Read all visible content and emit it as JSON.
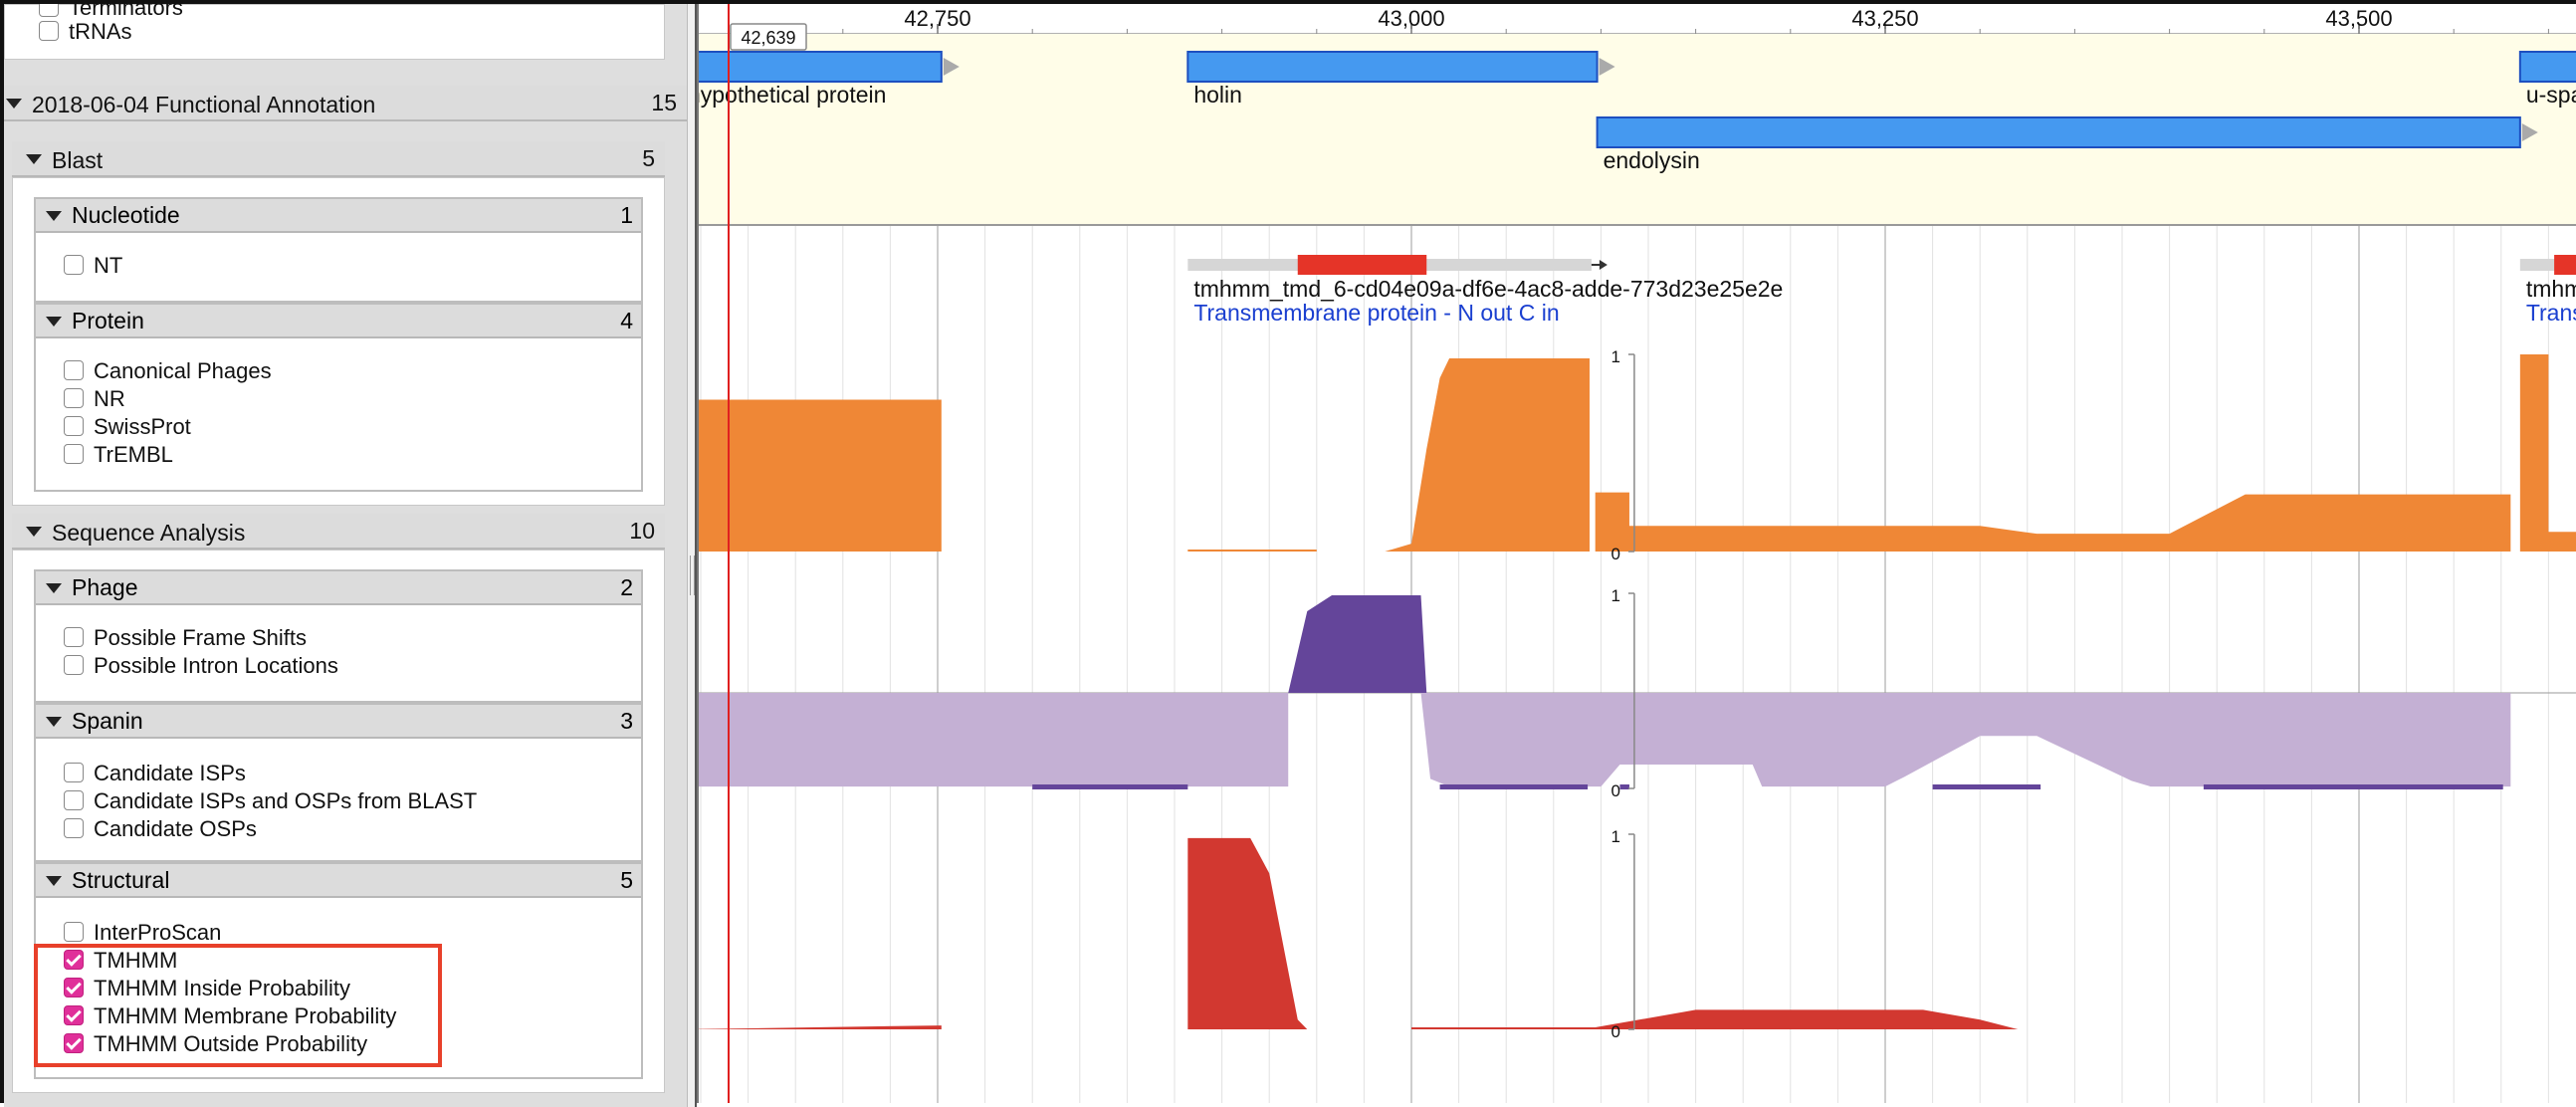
{
  "sidebar": {
    "top_items": [
      {
        "label": "Terminators",
        "checked": false
      },
      {
        "label": "tRNAs",
        "checked": false
      }
    ],
    "section": {
      "title": "2018-06-04 Functional Annotation",
      "count": "15"
    },
    "groups": [
      {
        "title": "Blast",
        "count": "5",
        "subgroups": [
          {
            "title": "Nucleotide",
            "count": "1",
            "items": [
              {
                "label": "NT",
                "checked": false
              }
            ]
          },
          {
            "title": "Protein",
            "count": "4",
            "items": [
              {
                "label": "Canonical Phages",
                "checked": false
              },
              {
                "label": "NR",
                "checked": false
              },
              {
                "label": "SwissProt",
                "checked": false
              },
              {
                "label": "TrEMBL",
                "checked": false
              }
            ]
          }
        ]
      },
      {
        "title": "Sequence Analysis",
        "count": "10",
        "subgroups": [
          {
            "title": "Phage",
            "count": "2",
            "items": [
              {
                "label": "Possible Frame Shifts",
                "checked": false
              },
              {
                "label": "Possible Intron Locations",
                "checked": false
              }
            ]
          },
          {
            "title": "Spanin",
            "count": "3",
            "items": [
              {
                "label": "Candidate ISPs",
                "checked": false
              },
              {
                "label": "Candidate ISPs and OSPs from BLAST",
                "checked": false
              },
              {
                "label": "Candidate OSPs",
                "checked": false
              }
            ]
          },
          {
            "title": "Structural",
            "count": "5",
            "items": [
              {
                "label": "InterProScan",
                "checked": false
              },
              {
                "label": "TMHMM",
                "checked": true
              },
              {
                "label": "TMHMM Inside Probability",
                "checked": true
              },
              {
                "label": "TMHMM Membrane Probability",
                "checked": true
              },
              {
                "label": "TMHMM Outside Probability",
                "checked": true
              }
            ]
          }
        ]
      }
    ]
  },
  "browser": {
    "ruler": {
      "position_label": "42,639",
      "ticks": [
        {
          "pos": 42750,
          "label": "42,750"
        },
        {
          "pos": 43000,
          "label": "43,000"
        },
        {
          "pos": 43250,
          "label": "43,250"
        },
        {
          "pos": 43500,
          "label": "43,500"
        }
      ]
    },
    "genes": [
      {
        "name": "hypothetical protein",
        "start": 42615,
        "end": 42752,
        "row": 0
      },
      {
        "name": "holin",
        "start": 42882,
        "end": 43098,
        "row": 0
      },
      {
        "name": "endolysin",
        "start": 43098,
        "end": 43585,
        "row": 1
      },
      {
        "name": "u-spanin",
        "start": 43585,
        "end": 43700,
        "row": 0
      }
    ],
    "tmhmm_features": [
      {
        "id": "tmhmm_tmd_6-cd04e09a-df6e-4ac8-adde-773d23e25e2e",
        "description": "Transmembrane protein - N out C in",
        "start": 42882,
        "end": 43095,
        "tm_start": 42940,
        "tm_end": 43008
      },
      {
        "id": "tmhm",
        "description": "Trans",
        "start": 43585,
        "end": 43700,
        "tm_start": 43603,
        "tm_end": 43700
      }
    ],
    "plots": {
      "scale_labels": {
        "top": "1",
        "bottom": "0"
      },
      "colors": {
        "inside": "#ef8736",
        "membrane": "#64459a",
        "membrane_light": "#c4b0d4",
        "outside": "#d23830"
      },
      "inside": [
        [
          42615,
          0.77
        ],
        [
          42752,
          0.77
        ],
        [
          42752,
          0
        ],
        [
          42882,
          0
        ],
        [
          42882,
          0.01
        ],
        [
          42950,
          0.01
        ],
        [
          42950,
          0
        ],
        [
          42986,
          0
        ],
        [
          43000,
          0.04
        ],
        [
          43008,
          0.52
        ],
        [
          43015,
          0.88
        ],
        [
          43020,
          0.98
        ],
        [
          43094,
          0.98
        ],
        [
          43094,
          0
        ],
        [
          43097,
          0
        ],
        [
          43097,
          0.3
        ],
        [
          43115,
          0.3
        ],
        [
          43115,
          0.13
        ],
        [
          43300,
          0.13
        ],
        [
          43330,
          0.09
        ],
        [
          43400,
          0.09
        ],
        [
          43440,
          0.29
        ],
        [
          43580,
          0.29
        ],
        [
          43580,
          0
        ],
        [
          43585,
          0
        ],
        [
          43585,
          1
        ],
        [
          43600,
          1
        ],
        [
          43600,
          0.1
        ],
        [
          43700,
          0.1
        ]
      ],
      "membrane": [
        [
          42615,
          0
        ],
        [
          42935,
          0
        ],
        [
          42945,
          0.82
        ],
        [
          42958,
          0.98
        ],
        [
          43005,
          0.98
        ],
        [
          43008,
          0
        ],
        [
          43700,
          0
        ],
        [
          43700,
          0
        ]
      ],
      "outside": [
        [
          42615,
          0
        ],
        [
          42752,
          0.02
        ],
        [
          42752,
          0
        ],
        [
          42882,
          0
        ],
        [
          42882,
          0.98
        ],
        [
          42915,
          0.98
        ],
        [
          42925,
          0.8
        ],
        [
          42935,
          0.3
        ],
        [
          42940,
          0.05
        ],
        [
          42945,
          0
        ],
        [
          43000,
          0
        ],
        [
          43000,
          0.01
        ],
        [
          43097,
          0.01
        ],
        [
          43150,
          0.1
        ],
        [
          43270,
          0.1
        ],
        [
          43300,
          0.05
        ],
        [
          43320,
          0
        ],
        [
          43580,
          0
        ],
        [
          43580,
          0
        ],
        [
          43700,
          0
        ]
      ]
    }
  }
}
